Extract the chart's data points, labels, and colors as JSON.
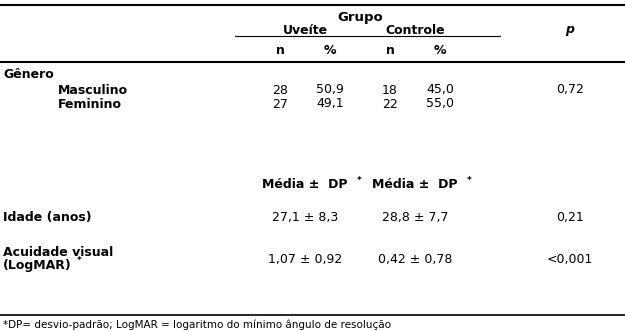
{
  "title": "Grupo",
  "col_uveite": "Uveíte",
  "col_controle": "Controle",
  "col_p": "p",
  "col_n": "n",
  "col_pct": "%",
  "row_genero": "Gênero",
  "row_masculino": "Masculino",
  "row_feminino": "Feminino",
  "uveite_masc_n": "28",
  "uveite_masc_pct": "50,9",
  "controle_masc_n": "18",
  "controle_masc_pct": "45,0",
  "p_genero": "0,72",
  "uveite_fem_n": "27",
  "uveite_fem_pct": "49,1",
  "controle_fem_n": "22",
  "controle_fem_pct": "55,0",
  "media_dp_label": "Média ±  DP",
  "media_dp_star": "*",
  "row_idade": "Idade (anos)",
  "uveite_idade": "27,1 ± 8,3",
  "controle_idade": "28,8 ± 7,7",
  "p_idade": "0,21",
  "row_acuidade_line1": "Acuidade visual",
  "row_acuidade_line2": "(LogMAR)",
  "row_acuidade_star": "*",
  "uveite_acuidade": "1,07 ± 0,92",
  "controle_acuidade": "0,42 ± 0,78",
  "p_acuidade": "<0,001",
  "footnote": "*DP= desvio-padrão; LogMAR = logaritmo do mínimo ângulo de resolução",
  "bg_color": "#ffffff",
  "text_color": "#000000",
  "fs": 9.0
}
